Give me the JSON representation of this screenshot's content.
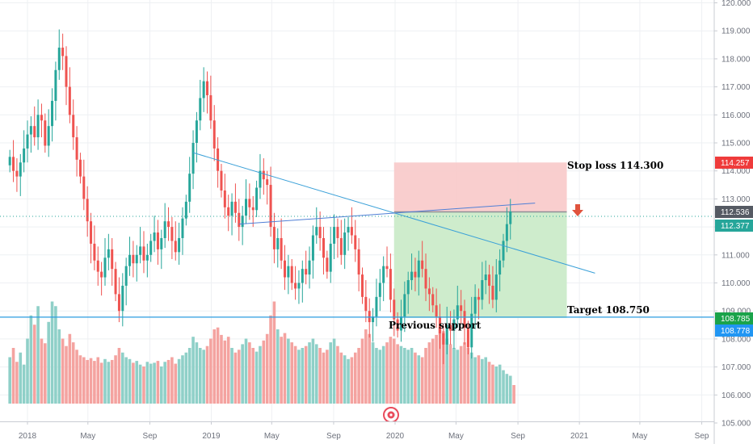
{
  "chart_data": {
    "type": "candlestick",
    "title": "",
    "ylim": [
      105,
      120
    ],
    "y_ticks": [
      "105.000",
      "106.000",
      "107.000",
      "108.000",
      "109.000",
      "110.000",
      "111.000",
      "112.000",
      "113.000",
      "114.000",
      "115.000",
      "116.000",
      "117.000",
      "118.000",
      "119.000",
      "120.000"
    ],
    "x_ticks": [
      "2018",
      "May",
      "Sep",
      "2019",
      "May",
      "Sep",
      "2020",
      "May",
      "Sep",
      "2021",
      "May",
      "Sep"
    ],
    "colors": {
      "up": "#26a69a",
      "down": "#ef5350",
      "vol_up": "#8fd0c8",
      "vol_down": "#f4a3a0",
      "trend": "#3aa0d8",
      "stop_zone": "#f8c9c9",
      "target_zone": "#cbebc9"
    },
    "weekly_closes": [
      114.5,
      114.0,
      113.8,
      114.3,
      114.8,
      115.3,
      115.6,
      115.2,
      116.0,
      115.8,
      114.9,
      115.6,
      116.5,
      117.6,
      118.4,
      118.1,
      117.0,
      116.0,
      115.2,
      114.4,
      113.8,
      113.0,
      112.2,
      111.4,
      110.8,
      110.4,
      110.2,
      110.9,
      111.2,
      110.5,
      109.6,
      109.0,
      109.9,
      110.6,
      111.0,
      110.7,
      111.0,
      111.3,
      110.8,
      111.0,
      111.5,
      111.8,
      111.2,
      111.6,
      112.2,
      112.0,
      111.5,
      111.1,
      111.6,
      112.3,
      112.9,
      113.9,
      115.0,
      115.8,
      116.6,
      117.2,
      116.7,
      115.8,
      114.8,
      114.0,
      113.3,
      112.7,
      112.4,
      112.9,
      112.5,
      112.0,
      112.4,
      113.0,
      112.7,
      112.6,
      113.4,
      114.0,
      113.7,
      113.5,
      112.0,
      111.2,
      111.6,
      110.8,
      110.2,
      110.6,
      110.0,
      109.8,
      110.0,
      110.5,
      110.3,
      110.8,
      111.7,
      112.0,
      111.6,
      110.9,
      110.4,
      111.4,
      112.0,
      111.6,
      111.0,
      111.8,
      112.0,
      111.7,
      111.2,
      110.3,
      109.5,
      109.0,
      108.6,
      108.8,
      109.5,
      110.0,
      110.6,
      110.5,
      109.4,
      108.7,
      108.3,
      108.8,
      109.6,
      110.1,
      110.4,
      110.2,
      110.8,
      110.5,
      109.8,
      109.6,
      109.2,
      108.8,
      108.2,
      107.8,
      108.5,
      108.3,
      108.7,
      109.2,
      109.0,
      108.4,
      107.7,
      108.9,
      109.5,
      109.4,
      110.1,
      110.3,
      109.9,
      109.4,
      110.3,
      110.8,
      111.5,
      112.1,
      112.55
    ],
    "weekly_volume": [
      0.5,
      0.6,
      0.45,
      0.55,
      0.42,
      0.7,
      0.95,
      0.85,
      1.05,
      0.7,
      0.65,
      0.88,
      1.1,
      1.05,
      0.8,
      0.7,
      0.62,
      0.75,
      0.66,
      0.58,
      0.52,
      0.5,
      0.47,
      0.49,
      0.46,
      0.5,
      0.44,
      0.48,
      0.45,
      0.47,
      0.52,
      0.6,
      0.55,
      0.5,
      0.48,
      0.44,
      0.46,
      0.42,
      0.4,
      0.45,
      0.43,
      0.44,
      0.46,
      0.4,
      0.45,
      0.47,
      0.5,
      0.43,
      0.48,
      0.52,
      0.55,
      0.6,
      0.72,
      0.66,
      0.6,
      0.58,
      0.62,
      0.7,
      0.8,
      0.82,
      0.74,
      0.68,
      0.72,
      0.6,
      0.55,
      0.58,
      0.64,
      0.7,
      0.66,
      0.6,
      0.56,
      0.62,
      0.68,
      0.75,
      0.95,
      1.1,
      0.8,
      0.72,
      0.76,
      0.7,
      0.66,
      0.62,
      0.58,
      0.6,
      0.62,
      0.66,
      0.7,
      0.64,
      0.6,
      0.55,
      0.58,
      0.66,
      0.7,
      0.62,
      0.55,
      0.52,
      0.48,
      0.5,
      0.55,
      0.6,
      0.7,
      0.8,
      0.75,
      0.66,
      0.6,
      0.58,
      0.62,
      0.66,
      0.72,
      0.7,
      0.64,
      0.62,
      0.6,
      0.58,
      0.6,
      0.55,
      0.52,
      0.5,
      0.6,
      0.66,
      0.7,
      0.74,
      0.82,
      0.78,
      0.7,
      0.64,
      0.6,
      0.58,
      0.62,
      0.66,
      0.6,
      0.55,
      0.5,
      0.52,
      0.48,
      0.5,
      0.45,
      0.42,
      0.4,
      0.42,
      0.36,
      0.32,
      0.3,
      0.2
    ],
    "trendline_1": {
      "from": [
        "2018-11-26",
        114.65
      ],
      "to": [
        "2021-02-01",
        110.35
      ]
    },
    "trendline_2": {
      "from": [
        "2019-02-25",
        112.1
      ],
      "to": [
        "2020-10-05",
        112.85
      ]
    },
    "position": {
      "start": "2019-12-30",
      "end": "2020-12-07",
      "entry": 112.536,
      "stop": 114.3,
      "target": 108.75
    },
    "support_level": 108.778,
    "last_price_dotted": 112.377,
    "annotations": {
      "stop_loss": "Stop loss 114.300",
      "target": "Target 108.750",
      "previous_support": "Previous support"
    },
    "price_tags": [
      {
        "text": "114.257",
        "value": 114.257,
        "color": "#ef3b3b"
      },
      {
        "text": "112.536",
        "value": 112.536,
        "color": "#555a63"
      },
      {
        "text": "112.377",
        "value": 112.377,
        "color": "#26a69a"
      },
      {
        "text": "108.785",
        "value": 108.785,
        "color": "#1aa34a"
      },
      {
        "text": "108.778",
        "value": 108.778,
        "color": "#2196f3"
      }
    ]
  }
}
